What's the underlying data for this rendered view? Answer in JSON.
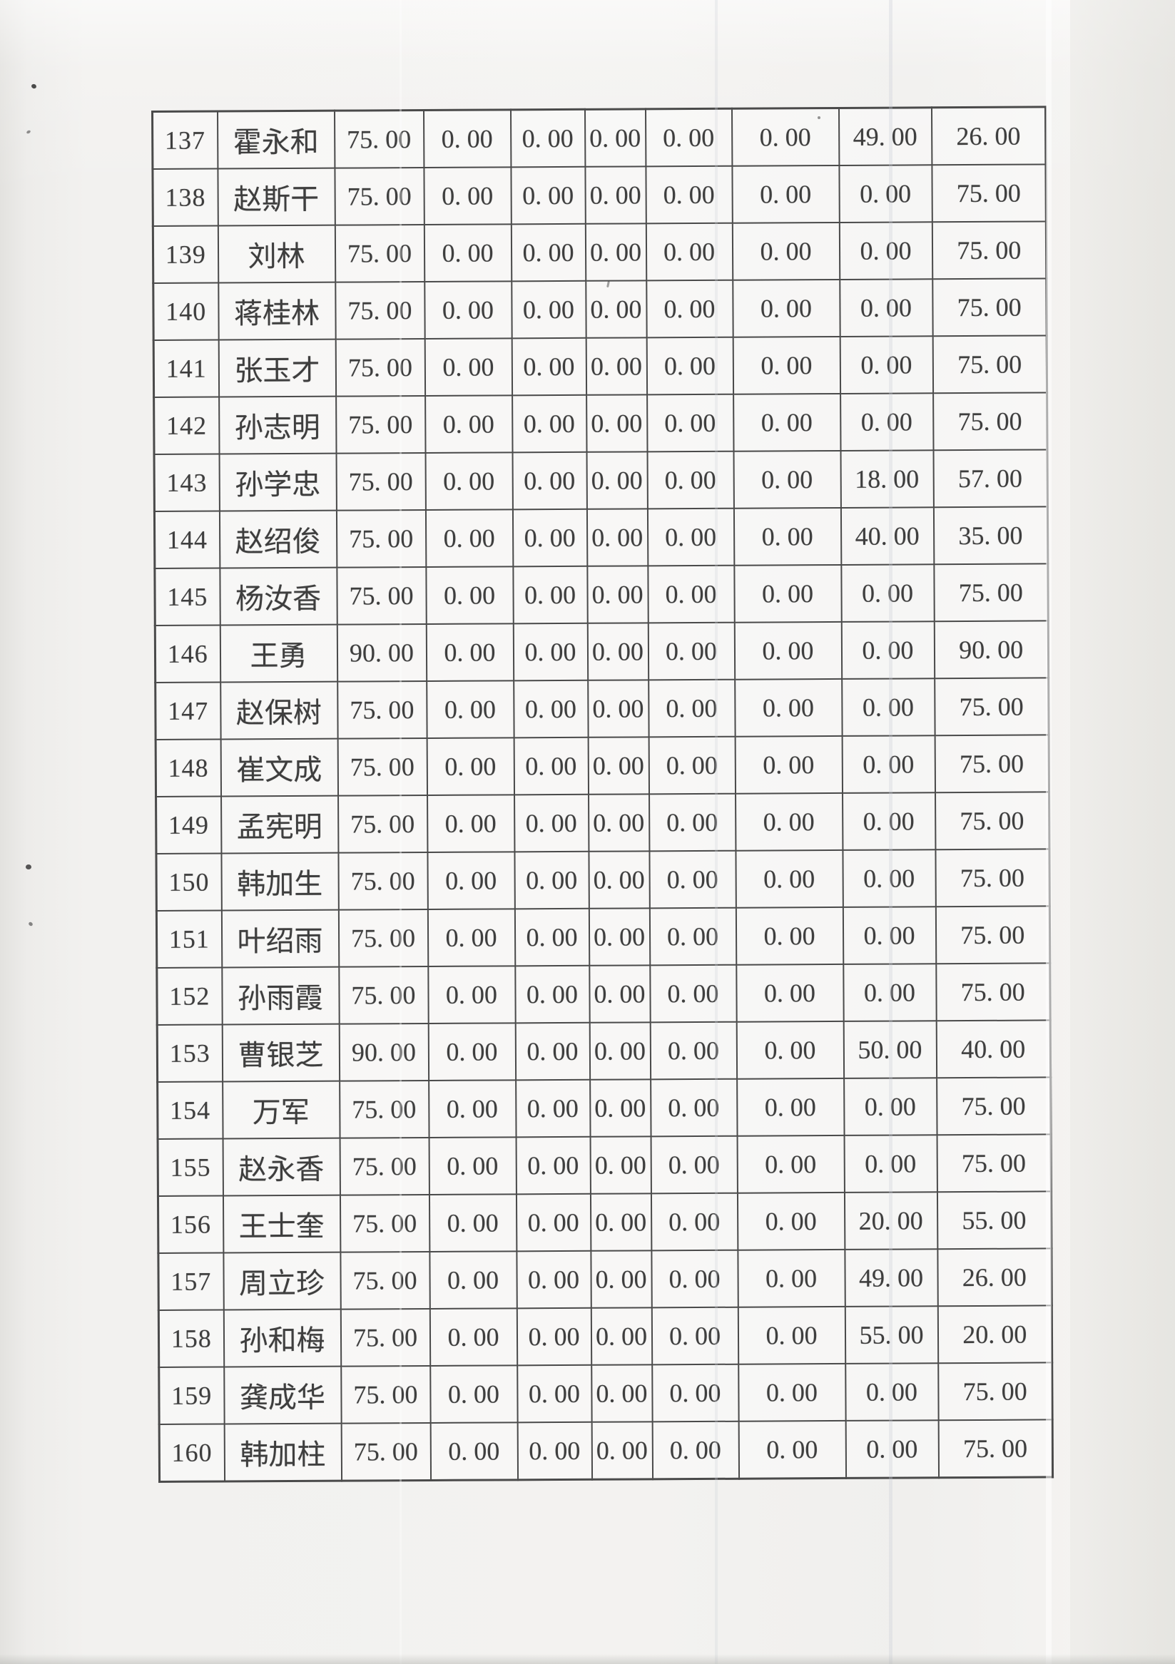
{
  "document": {
    "kind": "scanned-table-page",
    "visible_row_range": "137-160"
  },
  "colors": {
    "ink": "#3e3e3e",
    "border": "#4a4a4a",
    "paper": "#f2f1ef"
  },
  "table": {
    "rows": [
      [
        "137",
        "霍永和",
        "75. 00",
        "0. 00",
        "0. 00",
        "0. 00",
        "0. 00",
        "0. 00",
        "49. 00",
        "26. 00"
      ],
      [
        "138",
        "赵斯干",
        "75. 00",
        "0. 00",
        "0. 00",
        "0. 00",
        "0. 00",
        "0. 00",
        "0. 00",
        "75. 00"
      ],
      [
        "139",
        "刘林",
        "75. 00",
        "0. 00",
        "0. 00",
        "0. 00",
        "0. 00",
        "0. 00",
        "0. 00",
        "75. 00"
      ],
      [
        "140",
        "蒋桂林",
        "75. 00",
        "0. 00",
        "0. 00",
        "0. 00",
        "0. 00",
        "0. 00",
        "0. 00",
        "75. 00"
      ],
      [
        "141",
        "张玉才",
        "75. 00",
        "0. 00",
        "0. 00",
        "0. 00",
        "0. 00",
        "0. 00",
        "0. 00",
        "75. 00"
      ],
      [
        "142",
        "孙志明",
        "75. 00",
        "0. 00",
        "0. 00",
        "0. 00",
        "0. 00",
        "0. 00",
        "0. 00",
        "75. 00"
      ],
      [
        "143",
        "孙学忠",
        "75. 00",
        "0. 00",
        "0. 00",
        "0. 00",
        "0. 00",
        "0. 00",
        "18. 00",
        "57. 00"
      ],
      [
        "144",
        "赵绍俊",
        "75. 00",
        "0. 00",
        "0. 00",
        "0. 00",
        "0. 00",
        "0. 00",
        "40. 00",
        "35. 00"
      ],
      [
        "145",
        "杨汝香",
        "75. 00",
        "0. 00",
        "0. 00",
        "0. 00",
        "0. 00",
        "0. 00",
        "0. 00",
        "75. 00"
      ],
      [
        "146",
        "王勇",
        "90. 00",
        "0. 00",
        "0. 00",
        "0. 00",
        "0. 00",
        "0. 00",
        "0. 00",
        "90. 00"
      ],
      [
        "147",
        "赵保树",
        "75. 00",
        "0. 00",
        "0. 00",
        "0. 00",
        "0. 00",
        "0. 00",
        "0. 00",
        "75. 00"
      ],
      [
        "148",
        "崔文成",
        "75. 00",
        "0. 00",
        "0. 00",
        "0. 00",
        "0. 00",
        "0. 00",
        "0. 00",
        "75. 00"
      ],
      [
        "149",
        "孟宪明",
        "75. 00",
        "0. 00",
        "0. 00",
        "0. 00",
        "0. 00",
        "0. 00",
        "0. 00",
        "75. 00"
      ],
      [
        "150",
        "韩加生",
        "75. 00",
        "0. 00",
        "0. 00",
        "0. 00",
        "0. 00",
        "0. 00",
        "0. 00",
        "75. 00"
      ],
      [
        "151",
        "叶绍雨",
        "75. 00",
        "0. 00",
        "0. 00",
        "0. 00",
        "0. 00",
        "0. 00",
        "0. 00",
        "75. 00"
      ],
      [
        "152",
        "孙雨霞",
        "75. 00",
        "0. 00",
        "0. 00",
        "0. 00",
        "0. 00",
        "0. 00",
        "0. 00",
        "75. 00"
      ],
      [
        "153",
        "曹银芝",
        "90. 00",
        "0. 00",
        "0. 00",
        "0. 00",
        "0. 00",
        "0. 00",
        "50. 00",
        "40. 00"
      ],
      [
        "154",
        "万军",
        "75. 00",
        "0. 00",
        "0. 00",
        "0. 00",
        "0. 00",
        "0. 00",
        "0. 00",
        "75. 00"
      ],
      [
        "155",
        "赵永香",
        "75. 00",
        "0. 00",
        "0. 00",
        "0. 00",
        "0. 00",
        "0. 00",
        "0. 00",
        "75. 00"
      ],
      [
        "156",
        "王士奎",
        "75. 00",
        "0. 00",
        "0. 00",
        "0. 00",
        "0. 00",
        "0. 00",
        "20. 00",
        "55. 00"
      ],
      [
        "157",
        "周立珍",
        "75. 00",
        "0. 00",
        "0. 00",
        "0. 00",
        "0. 00",
        "0. 00",
        "49. 00",
        "26. 00"
      ],
      [
        "158",
        "孙和梅",
        "75. 00",
        "0. 00",
        "0. 00",
        "0. 00",
        "0. 00",
        "0. 00",
        "55. 00",
        "20. 00"
      ],
      [
        "159",
        "龚成华",
        "75. 00",
        "0. 00",
        "0. 00",
        "0. 00",
        "0. 00",
        "0. 00",
        "0. 00",
        "75. 00"
      ],
      [
        "160",
        "韩加柱",
        "75. 00",
        "0. 00",
        "0. 00",
        "0. 00",
        "0. 00",
        "0. 00",
        "0. 00",
        "75. 00"
      ]
    ]
  }
}
